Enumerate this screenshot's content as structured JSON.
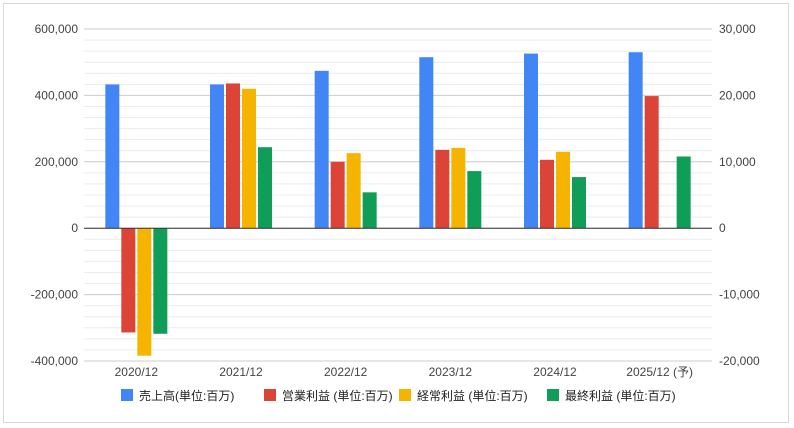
{
  "chart_data": {
    "type": "bar",
    "categories": [
      "2020/12",
      "2021/12",
      "2022/12",
      "2023/12",
      "2024/12",
      "2025/12 (予)"
    ],
    "left_axis": {
      "ylim": [
        -400000,
        600000
      ],
      "ticks": [
        -400000,
        -200000,
        0,
        200000,
        400000,
        600000
      ],
      "tick_labels": [
        "-400,000",
        "-200,000",
        "0",
        "200,000",
        "400,000",
        "600,000"
      ]
    },
    "right_axis": {
      "ylim": [
        -20000,
        30000
      ],
      "ticks": [
        -20000,
        -10000,
        0,
        10000,
        20000,
        30000
      ],
      "tick_labels": [
        "-20,000",
        "-10,000",
        "0",
        "10,000",
        "20,000",
        "30,000"
      ]
    },
    "grid": true,
    "legend_position": "bottom",
    "series": [
      {
        "name": "売上高(単位:百万)",
        "color": "#4285f4",
        "axis": "left",
        "values": [
          433000,
          433000,
          474000,
          515000,
          526000,
          530000
        ]
      },
      {
        "name": "営業利益 (単位:百万)",
        "color": "#db4437",
        "axis": "right",
        "values": [
          -15700,
          21800,
          10000,
          11800,
          10300,
          19900
        ]
      },
      {
        "name": "経常利益 (単位:百万)",
        "color": "#f4b400",
        "axis": "right",
        "values": [
          -19200,
          21000,
          11300,
          12100,
          11500,
          null
        ]
      },
      {
        "name": "最終利益 (単位:百万)",
        "color": "#0f9d58",
        "axis": "right",
        "values": [
          -15900,
          12200,
          5400,
          8600,
          7700,
          10800
        ]
      }
    ]
  }
}
